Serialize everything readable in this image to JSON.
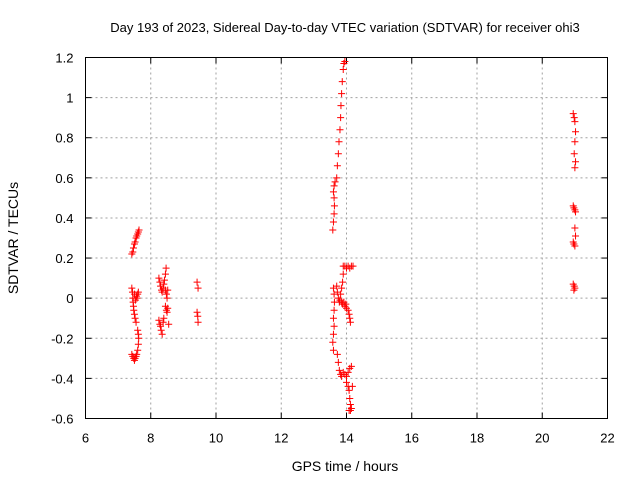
{
  "chart_data": {
    "type": "scatter",
    "title": "Day 193 of 2023, Sidereal Day-to-day VTEC variation (SDTVAR) for receiver ohi3",
    "xlabel": "GPS time / hours",
    "ylabel": "SDTVAR / TECUs",
    "xlim": [
      6,
      22
    ],
    "ylim": [
      -0.6,
      1.2
    ],
    "x_ticks": [
      6,
      8,
      10,
      12,
      14,
      16,
      18,
      20,
      22
    ],
    "x_tick_labels": [
      "6",
      "8",
      "10",
      "12",
      "14",
      "16",
      "18",
      "20",
      "22"
    ],
    "y_ticks": [
      -0.6,
      -0.4,
      -0.2,
      0,
      0.2,
      0.4,
      0.6,
      0.8,
      1,
      1.2
    ],
    "y_tick_labels": [
      "-0.6",
      "-0.4",
      "-0.2",
      "0",
      "0.2",
      "0.4",
      "0.6",
      "0.8",
      "1",
      "1.2"
    ],
    "grid": true,
    "marker": "+",
    "marker_color": "#ff0000",
    "series": [
      {
        "name": "SDTVAR",
        "points": [
          [
            7.42,
            0.22
          ],
          [
            7.45,
            0.23
          ],
          [
            7.47,
            0.25
          ],
          [
            7.5,
            0.27
          ],
          [
            7.52,
            0.28
          ],
          [
            7.55,
            0.3
          ],
          [
            7.57,
            0.31
          ],
          [
            7.6,
            0.32
          ],
          [
            7.62,
            0.33
          ],
          [
            7.64,
            0.34
          ],
          [
            7.42,
            0.05
          ],
          [
            7.44,
            0.03
          ],
          [
            7.45,
            0.0
          ],
          [
            7.46,
            -0.02
          ],
          [
            7.47,
            -0.04
          ],
          [
            7.48,
            -0.06
          ],
          [
            7.5,
            -0.08
          ],
          [
            7.52,
            -0.1
          ],
          [
            7.55,
            -0.12
          ],
          [
            7.5,
            0.02
          ],
          [
            7.53,
            -0.01
          ],
          [
            7.56,
            0.01
          ],
          [
            7.58,
            0.0
          ],
          [
            7.6,
            0.02
          ],
          [
            7.62,
            0.03
          ],
          [
            7.6,
            -0.16
          ],
          [
            7.62,
            -0.18
          ],
          [
            7.63,
            -0.2
          ],
          [
            7.62,
            -0.23
          ],
          [
            7.6,
            -0.26
          ],
          [
            7.42,
            -0.28
          ],
          [
            7.45,
            -0.29
          ],
          [
            7.48,
            -0.3
          ],
          [
            7.5,
            -0.31
          ],
          [
            7.52,
            -0.3
          ],
          [
            7.55,
            -0.29
          ],
          [
            7.57,
            -0.28
          ],
          [
            8.25,
            0.1
          ],
          [
            8.28,
            0.08
          ],
          [
            8.3,
            0.06
          ],
          [
            8.33,
            0.04
          ],
          [
            8.35,
            0.03
          ],
          [
            8.38,
            0.05
          ],
          [
            8.4,
            0.07
          ],
          [
            8.42,
            0.09
          ],
          [
            8.45,
            0.12
          ],
          [
            8.47,
            0.15
          ],
          [
            8.45,
            0.04
          ],
          [
            8.48,
            0.02
          ],
          [
            8.5,
            0.0
          ],
          [
            8.52,
            0.04
          ],
          [
            8.45,
            -0.04
          ],
          [
            8.48,
            -0.06
          ],
          [
            8.5,
            -0.07
          ],
          [
            8.52,
            -0.05
          ],
          [
            8.55,
            -0.13
          ],
          [
            8.25,
            -0.11
          ],
          [
            8.28,
            -0.13
          ],
          [
            8.3,
            -0.14
          ],
          [
            8.32,
            -0.16
          ],
          [
            8.35,
            -0.18
          ],
          [
            8.38,
            -0.12
          ],
          [
            8.4,
            -0.1
          ],
          [
            9.42,
            0.08
          ],
          [
            9.45,
            0.05
          ],
          [
            9.42,
            -0.07
          ],
          [
            9.44,
            -0.09
          ],
          [
            9.45,
            -0.12
          ],
          [
            13.58,
            0.34
          ],
          [
            13.6,
            0.38
          ],
          [
            13.62,
            0.42
          ],
          [
            13.63,
            0.46
          ],
          [
            13.62,
            0.5
          ],
          [
            13.6,
            0.53
          ],
          [
            13.62,
            0.56
          ],
          [
            13.65,
            0.58
          ],
          [
            13.7,
            0.6
          ],
          [
            13.72,
            0.66
          ],
          [
            13.75,
            0.72
          ],
          [
            13.77,
            0.78
          ],
          [
            13.8,
            0.84
          ],
          [
            13.82,
            0.9
          ],
          [
            13.83,
            0.96
          ],
          [
            13.85,
            1.02
          ],
          [
            13.87,
            1.08
          ],
          [
            13.9,
            1.14
          ],
          [
            13.92,
            1.17
          ],
          [
            13.95,
            1.18
          ],
          [
            13.6,
            0.05
          ],
          [
            13.62,
            0.02
          ],
          [
            13.63,
            -0.02
          ],
          [
            13.62,
            -0.06
          ],
          [
            13.6,
            -0.1
          ],
          [
            13.62,
            -0.14
          ],
          [
            13.6,
            -0.18
          ],
          [
            13.58,
            -0.22
          ],
          [
            13.6,
            -0.26
          ],
          [
            13.7,
            0.06
          ],
          [
            13.72,
            0.03
          ],
          [
            13.75,
            0.0
          ],
          [
            13.78,
            -0.02
          ],
          [
            13.8,
            -0.01
          ],
          [
            13.82,
            0.02
          ],
          [
            13.85,
            0.05
          ],
          [
            13.88,
            0.08
          ],
          [
            13.9,
            0.12
          ],
          [
            13.9,
            0.16
          ],
          [
            13.85,
            -0.02
          ],
          [
            13.88,
            -0.03
          ],
          [
            13.92,
            -0.02
          ],
          [
            13.95,
            -0.04
          ],
          [
            13.98,
            -0.03
          ],
          [
            14.0,
            -0.05
          ],
          [
            14.05,
            -0.06
          ],
          [
            14.08,
            -0.08
          ],
          [
            14.1,
            -0.1
          ],
          [
            14.12,
            -0.12
          ],
          [
            13.95,
            0.16
          ],
          [
            14.0,
            0.15
          ],
          [
            14.05,
            0.16
          ],
          [
            14.1,
            0.15
          ],
          [
            14.15,
            0.16
          ],
          [
            14.2,
            0.16
          ],
          [
            13.72,
            -0.28
          ],
          [
            13.75,
            -0.32
          ],
          [
            13.78,
            -0.36
          ],
          [
            13.82,
            -0.38
          ],
          [
            13.85,
            -0.39
          ],
          [
            13.9,
            -0.37
          ],
          [
            13.95,
            -0.38
          ],
          [
            14.0,
            -0.39
          ],
          [
            14.05,
            -0.37
          ],
          [
            14.1,
            -0.35
          ],
          [
            14.15,
            -0.34
          ],
          [
            14.0,
            -0.42
          ],
          [
            14.05,
            -0.44
          ],
          [
            14.08,
            -0.46
          ],
          [
            14.1,
            -0.5
          ],
          [
            14.12,
            -0.53
          ],
          [
            14.08,
            -0.56
          ],
          [
            14.12,
            -0.56
          ],
          [
            14.15,
            -0.55
          ],
          [
            14.18,
            -0.44
          ],
          [
            20.95,
            0.92
          ],
          [
            20.98,
            0.9
          ],
          [
            21.0,
            0.88
          ],
          [
            21.02,
            0.83
          ],
          [
            21.0,
            0.78
          ],
          [
            20.98,
            0.72
          ],
          [
            21.02,
            0.68
          ],
          [
            21.0,
            0.65
          ],
          [
            20.95,
            0.46
          ],
          [
            20.97,
            0.45
          ],
          [
            21.0,
            0.44
          ],
          [
            21.02,
            0.43
          ],
          [
            21.0,
            0.35
          ],
          [
            21.02,
            0.31
          ],
          [
            20.95,
            0.28
          ],
          [
            20.97,
            0.27
          ],
          [
            21.0,
            0.26
          ],
          [
            20.95,
            0.07
          ],
          [
            20.98,
            0.06
          ],
          [
            21.0,
            0.05
          ],
          [
            20.97,
            0.04
          ]
        ]
      }
    ]
  }
}
